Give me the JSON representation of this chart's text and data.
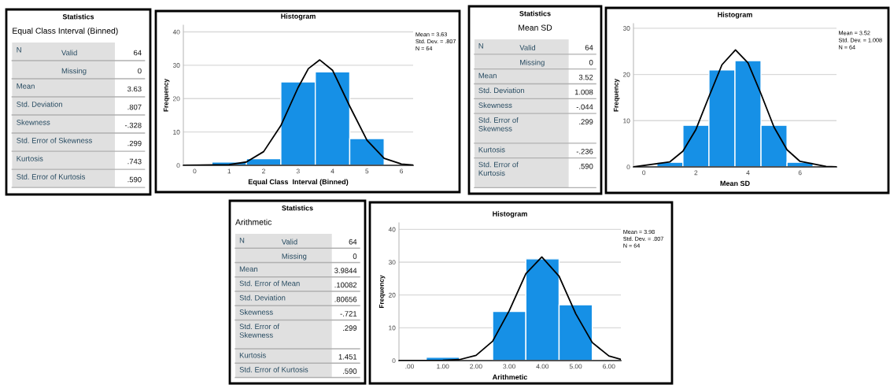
{
  "chart_data": [
    {
      "type": "other",
      "title": "Statistics",
      "subtitle": "Equal Class Interval (Binned)",
      "y_categories": [
        "N",
        null,
        "Mean",
        "Std. Deviation",
        "Skewness",
        "Std. Error of Skewness",
        "Kurtosis",
        "Std. Error of Kurtosis"
      ],
      "y2_categories": [
        "Valid",
        "Missing",
        null,
        null,
        null,
        null,
        null,
        null
      ],
      "cell_labels": [
        [
          "64"
        ],
        [
          "0"
        ],
        [
          "3.63"
        ],
        [
          ".807"
        ],
        [
          "-.328"
        ],
        [
          ".299"
        ],
        [
          ".743"
        ],
        [
          ".590"
        ]
      ]
    },
    {
      "type": "histogram",
      "title": "Histogram",
      "xlabel": "Equal Class  Interval (Binned)",
      "ylabel": "Frequency",
      "xlim": [
        -0.33,
        6.34
      ],
      "ylim": [
        0,
        42
      ],
      "xticks": [
        0,
        1,
        2,
        3,
        4,
        5,
        6
      ],
      "yticks": [
        0,
        10,
        20,
        30,
        40
      ],
      "grid": "y",
      "series": [
        {
          "type": "histogram",
          "color": "#1690e6",
          "bins": [
            0.5,
            1.5,
            2.5,
            3.5,
            4.5,
            5.5
          ],
          "values": [
            1,
            2,
            25,
            28,
            8
          ]
        },
        {
          "type": "line",
          "color": "#000000",
          "x": [
            -0.33,
            1,
            1.5,
            2,
            2.5,
            3,
            3.3,
            3.63,
            4,
            4.5,
            5,
            5.5,
            6,
            6.34
          ],
          "values": [
            0,
            0.2,
            1,
            4.1,
            11.9,
            23.3,
            29,
            31.6,
            28.5,
            17.7,
            7.5,
            2.1,
            0.4,
            0.1
          ]
        }
      ],
      "annotations": [
        "Mean = 3.63",
        "Std. Dev. = .807",
        "N = 64"
      ]
    },
    {
      "type": "other",
      "title": "Statistics",
      "subtitle": "Mean SD",
      "y_categories": [
        "N",
        null,
        "Mean",
        "Std. Deviation",
        "Skewness",
        "Std. Error of\nSkewness",
        "Kurtosis",
        "Std. Error of\nKurtosis"
      ],
      "y2_categories": [
        "Valid",
        "Missing",
        null,
        null,
        null,
        null,
        null,
        null
      ],
      "cell_labels": [
        [
          "64"
        ],
        [
          "0"
        ],
        [
          "3.52"
        ],
        [
          "1.008"
        ],
        [
          "-.044"
        ],
        [
          ".299"
        ],
        [
          "-.236"
        ],
        [
          ".590"
        ]
      ]
    },
    {
      "type": "histogram",
      "title": "Histogram",
      "xlabel": "Mean SD",
      "ylabel": "Frequency",
      "xlim": [
        -0.4,
        7.4
      ],
      "ylim": [
        0,
        31
      ],
      "xticks": [
        0,
        2,
        4,
        6
      ],
      "yticks": [
        0,
        10,
        20,
        30
      ],
      "grid": "y",
      "series": [
        {
          "type": "histogram",
          "color": "#1690e6",
          "bins": [
            0.5,
            1.5,
            2.5,
            3.5,
            4.5,
            5.5,
            6.5
          ],
          "values": [
            1,
            9,
            21,
            23,
            9,
            1
          ]
        },
        {
          "type": "line",
          "color": "#000000",
          "x": [
            -0.4,
            1,
            1.5,
            2,
            2.5,
            3,
            3.52,
            4,
            4.5,
            5,
            5.5,
            6,
            7,
            7.4
          ],
          "values": [
            0,
            1.1,
            3.4,
            8.1,
            15.2,
            22.1,
            25.3,
            22.5,
            15.8,
            8.6,
            3.7,
            1.2,
            0.1,
            0
          ]
        }
      ],
      "annotations": [
        "Mean = 3.52",
        "Std. Dev. = 1.008",
        "N = 64"
      ]
    },
    {
      "type": "other",
      "title": "Statistics",
      "subtitle": "Arithmetic",
      "y_categories": [
        "N",
        null,
        "Mean",
        "Std. Error of Mean",
        "Std. Deviation",
        "Skewness",
        "Std. Error of\nSkewness",
        "Kurtosis",
        "Std. Error of Kurtosis"
      ],
      "y2_categories": [
        "Valid",
        "Missing",
        null,
        null,
        null,
        null,
        null,
        null,
        null
      ],
      "cell_labels": [
        [
          "64"
        ],
        [
          "0"
        ],
        [
          "3.9844"
        ],
        [
          ".10082"
        ],
        [
          ".80656"
        ],
        [
          "-.721"
        ],
        [
          ".299"
        ],
        [
          "1.451"
        ],
        [
          ".590"
        ]
      ]
    },
    {
      "type": "histogram",
      "title": "Histogram",
      "xlabel": "Arithmetic",
      "ylabel": "Frequency",
      "xlim": [
        -0.32,
        6.36
      ],
      "ylim": [
        0,
        42
      ],
      "xticks": [
        {
          "value": 0,
          "label": ".00"
        },
        {
          "value": 1,
          "label": "1.00"
        },
        {
          "value": 2,
          "label": "2.00"
        },
        {
          "value": 3,
          "label": "3.00"
        },
        {
          "value": 4,
          "label": "4.00"
        },
        {
          "value": 5,
          "label": "5.00"
        },
        {
          "value": 6,
          "label": "6.00"
        }
      ],
      "yticks": [
        0,
        10,
        20,
        30,
        40
      ],
      "grid": "y",
      "series": [
        {
          "type": "histogram",
          "color": "#1690e6",
          "bins": [
            0.5,
            1.5,
            2.5,
            3.5,
            4.5,
            5.5
          ],
          "values": [
            1,
            0,
            15,
            31,
            17
          ]
        },
        {
          "type": "line",
          "color": "#000000",
          "x": [
            -0.32,
            1,
            1.5,
            2,
            2.5,
            3,
            3.5,
            3.98,
            4.5,
            5,
            5.5,
            6,
            6.36
          ],
          "values": [
            0,
            0.1,
            0.3,
            1.6,
            5.9,
            15.2,
            26.5,
            31.6,
            25.7,
            14.3,
            5.5,
            1.4,
            0.4
          ]
        }
      ],
      "annotations": [
        "Mean = 3.98",
        "Std. Dev. = .807",
        "N = 64"
      ]
    }
  ]
}
